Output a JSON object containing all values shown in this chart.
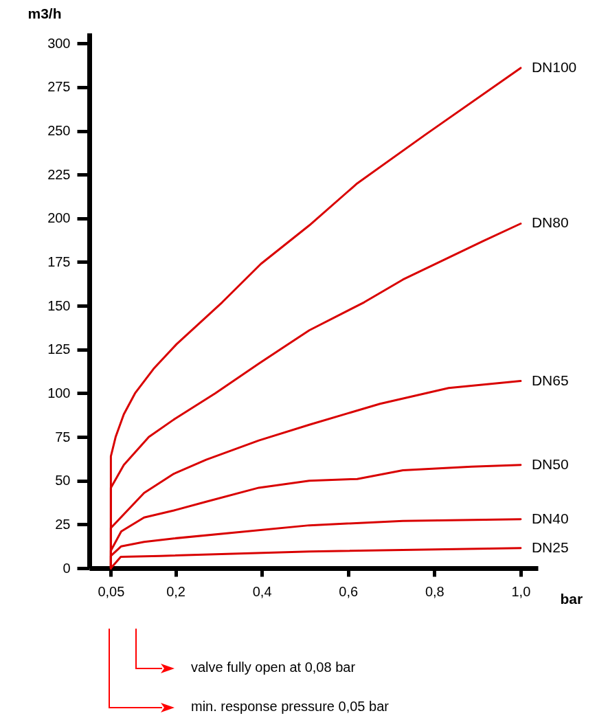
{
  "chart_data": {
    "type": "line",
    "xlabel": "bar",
    "ylabel": "m3/h",
    "xlim": [
      0,
      1.04
    ],
    "ylim": [
      0,
      306
    ],
    "xticks": [
      {
        "value": 0.05,
        "label": "0,05"
      },
      {
        "value": 0.2,
        "label": "0,2"
      },
      {
        "value": 0.4,
        "label": "0,4"
      },
      {
        "value": 0.6,
        "label": "0,6"
      },
      {
        "value": 0.8,
        "label": "0,8"
      },
      {
        "value": 1.0,
        "label": "1,0"
      }
    ],
    "yticks": [
      0,
      25,
      50,
      75,
      100,
      125,
      150,
      175,
      200,
      225,
      250,
      275,
      300
    ],
    "legend": false,
    "marker": "none",
    "line_style": "solid",
    "series": [
      {
        "name": "DN100",
        "color": "#d90000",
        "x": [
          0.05,
          0.05,
          0.061,
          0.08,
          0.106,
          0.149,
          0.202,
          0.308,
          0.398,
          0.51,
          0.621,
          0.78,
          1.0
        ],
        "values": [
          0,
          64,
          75,
          88,
          100,
          114,
          128,
          152,
          174,
          196,
          220,
          248,
          286
        ]
      },
      {
        "name": "DN80",
        "color": "#d90000",
        "x": [
          0.05,
          0.05,
          0.08,
          0.138,
          0.196,
          0.292,
          0.393,
          0.51,
          0.637,
          0.727,
          0.913,
          1.0
        ],
        "values": [
          0,
          46,
          59,
          75,
          85,
          100,
          117,
          136,
          152,
          165,
          187,
          197
        ]
      },
      {
        "name": "DN65",
        "color": "#d90000",
        "x": [
          0.05,
          0.05,
          0.127,
          0.196,
          0.271,
          0.393,
          0.51,
          0.674,
          0.833,
          1.0
        ],
        "values": [
          0,
          23,
          43,
          54,
          62,
          73,
          82,
          94,
          103,
          107
        ]
      },
      {
        "name": "DN50",
        "color": "#d90000",
        "x": [
          0.05,
          0.05,
          0.074,
          0.127,
          0.196,
          0.271,
          0.393,
          0.51,
          0.621,
          0.727,
          0.886,
          1.0
        ],
        "values": [
          0,
          10,
          21,
          29,
          33,
          38,
          46,
          50,
          51,
          56,
          58,
          59
        ]
      },
      {
        "name": "DN40",
        "color": "#d90000",
        "x": [
          0.05,
          0.05,
          0.074,
          0.127,
          0.196,
          0.51,
          0.727,
          1.0
        ],
        "values": [
          0,
          7,
          12.5,
          15,
          17,
          24.5,
          27,
          28
        ]
      },
      {
        "name": "DN25",
        "color": "#d90000",
        "x": [
          0.05,
          0.073,
          0.164,
          0.51,
          1.0
        ],
        "values": [
          0,
          6.5,
          7,
          9.5,
          11.5
        ]
      }
    ],
    "annotations": [
      "valve fully open at 0,08 bar",
      "min. response pressure 0,05 bar"
    ]
  }
}
